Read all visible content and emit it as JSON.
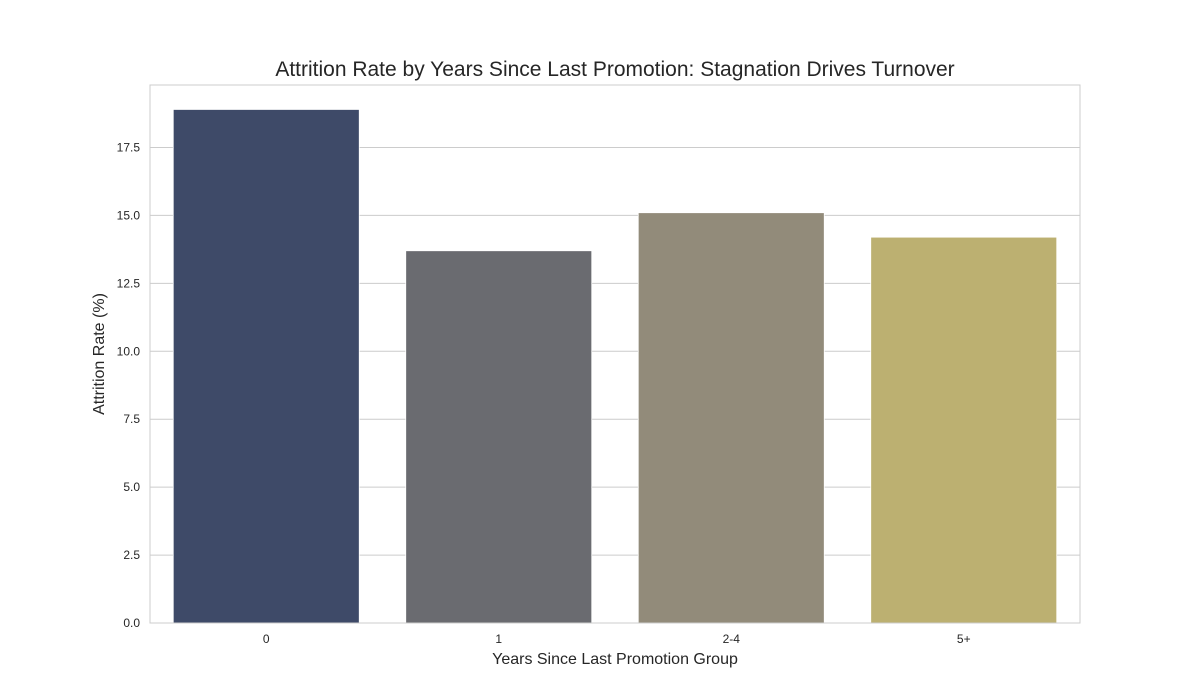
{
  "chart_data": {
    "type": "bar",
    "title": "Attrition Rate by Years Since Last Promotion: Stagnation Drives Turnover",
    "xlabel": "Years Since Last Promotion Group",
    "ylabel": "Attrition Rate (%)",
    "categories": [
      "0",
      "1",
      "2-4",
      "5+"
    ],
    "values": [
      18.9,
      13.7,
      15.1,
      14.2
    ],
    "colors": [
      "#3e4a68",
      "#6a6b70",
      "#928b7a",
      "#bcb071"
    ],
    "ylim": [
      0,
      19.8
    ],
    "yticks": [
      0.0,
      2.5,
      5.0,
      7.5,
      10.0,
      12.5,
      15.0,
      17.5
    ],
    "ytick_labels": [
      "0.0",
      "2.5",
      "5.0",
      "7.5",
      "10.0",
      "12.5",
      "15.0",
      "17.5"
    ],
    "grid": true,
    "legend": "none"
  }
}
